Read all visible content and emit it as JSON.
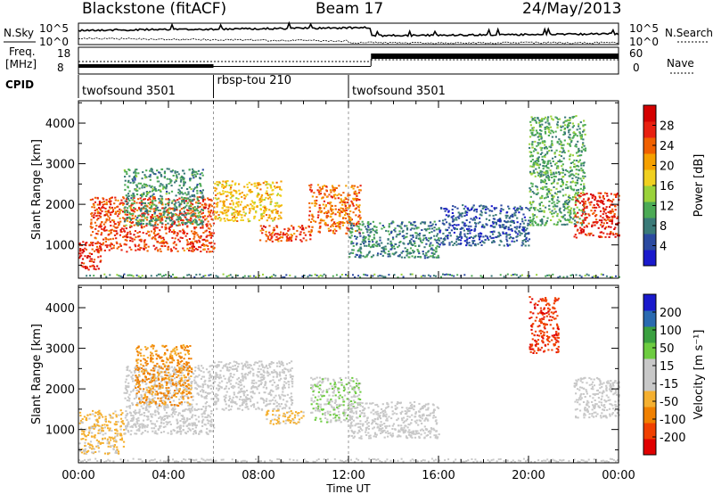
{
  "header": {
    "station": "Blackstone (fitACF)",
    "beam": "Beam 17",
    "date": "24/May/2013"
  },
  "side_labels": {
    "n_sky": "N.Sky",
    "n_search": "N.Search",
    "freq_line1": "Freq.",
    "freq_line2": "[MHz]",
    "nave": "Nave",
    "cpid": "CPID"
  },
  "noise_axis": {
    "top": "10^5",
    "bottom": "10^0"
  },
  "freq_axis": {
    "ticks": [
      "18",
      "8"
    ]
  },
  "nave_axis": {
    "ticks": [
      "60",
      "0"
    ]
  },
  "cpid_blocks": [
    {
      "label": "twofsound 3501",
      "start_hour": 0,
      "end_hour": 6
    },
    {
      "label": "rbsp-tou 210",
      "start_hour": 6,
      "end_hour": 12
    },
    {
      "label": "twofsound 3501",
      "start_hour": 12,
      "end_hour": 24
    }
  ],
  "chart_data": [
    {
      "type": "heatmap",
      "parameter": "power",
      "ylabel": "Slant Range [km]",
      "xlabel": "",
      "x_ticks": [
        "00:00",
        "04:00",
        "08:00",
        "12:00",
        "16:00",
        "20:00",
        "00:00"
      ],
      "y_ticks": [
        1000,
        2000,
        3000,
        4000
      ],
      "ylim": [
        180,
        4550
      ],
      "xlim_hours": [
        0,
        24
      ],
      "colorbar": {
        "label": "Power [dB]",
        "ticks": [
          "28",
          "24",
          "20",
          "16",
          "12",
          "8",
          "4"
        ],
        "range": [
          0,
          30
        ],
        "colors": [
          "#1a1acc",
          "#2b4aa0",
          "#3a7a78",
          "#4caa55",
          "#9ad23a",
          "#f0d020",
          "#f5a000",
          "#f06000",
          "#e82010",
          "#d40000"
        ]
      },
      "echo_regions": [
        {
          "start": 0.0,
          "end": 1.0,
          "range_low": 400,
          "range_high": 1100,
          "power": 26
        },
        {
          "start": 0.5,
          "end": 6.0,
          "range_low": 850,
          "range_high": 2200,
          "power": 24
        },
        {
          "start": 2.0,
          "end": 5.5,
          "range_low": 1500,
          "range_high": 2900,
          "power": 9
        },
        {
          "start": 6.0,
          "end": 9.0,
          "range_low": 1600,
          "range_high": 2600,
          "power": 18
        },
        {
          "start": 8.0,
          "end": 10.3,
          "range_low": 1100,
          "range_high": 1500,
          "power": 24
        },
        {
          "start": 10.2,
          "end": 12.5,
          "range_low": 1300,
          "range_high": 2500,
          "power": 22
        },
        {
          "start": 12.0,
          "end": 16.0,
          "range_low": 700,
          "range_high": 1600,
          "power": 8
        },
        {
          "start": 16.0,
          "end": 20.0,
          "range_low": 1000,
          "range_high": 2000,
          "power": 5
        },
        {
          "start": 20.0,
          "end": 22.5,
          "range_low": 1500,
          "range_high": 4200,
          "power": 10
        },
        {
          "start": 22.0,
          "end": 24.0,
          "range_low": 1200,
          "range_high": 2300,
          "power": 26
        }
      ]
    },
    {
      "type": "heatmap",
      "parameter": "velocity",
      "ylabel": "Slant Range [km]",
      "xlabel": "Time UT",
      "x_ticks": [
        "00:00",
        "04:00",
        "08:00",
        "12:00",
        "16:00",
        "20:00",
        "00:00"
      ],
      "y_ticks": [
        1000,
        2000,
        3000,
        4000
      ],
      "ylim": [
        180,
        4550
      ],
      "xlim_hours": [
        0,
        24
      ],
      "colorbar": {
        "label": "Velocity [m s⁻¹]",
        "ticks": [
          "200",
          "100",
          "50",
          "15",
          "-15",
          "-50",
          "-100",
          "-200"
        ],
        "range": [
          -250,
          250
        ],
        "colors": [
          "#e00000",
          "#f04000",
          "#f08000",
          "#f5b030",
          "#c8c8c8",
          "#c8c8c8",
          "#6dcc40",
          "#3aa040",
          "#2a6ab0",
          "#1a1acc"
        ]
      },
      "echo_regions": [
        {
          "start": 0.0,
          "end": 2.0,
          "range_low": 400,
          "range_high": 1500,
          "velocity": -60
        },
        {
          "start": 2.0,
          "end": 6.0,
          "range_low": 900,
          "range_high": 2600,
          "velocity": -20
        },
        {
          "start": 2.5,
          "end": 5.0,
          "range_low": 1600,
          "range_high": 3100,
          "velocity": -110
        },
        {
          "start": 6.0,
          "end": 9.5,
          "range_low": 1500,
          "range_high": 2700,
          "velocity": 0
        },
        {
          "start": 8.3,
          "end": 10.0,
          "range_low": 1150,
          "range_high": 1500,
          "velocity": -70
        },
        {
          "start": 10.3,
          "end": 12.5,
          "range_low": 1200,
          "range_high": 2300,
          "velocity": 45
        },
        {
          "start": 12.0,
          "end": 16.0,
          "range_low": 800,
          "range_high": 1700,
          "velocity": 5
        },
        {
          "start": 20.0,
          "end": 21.3,
          "range_low": 2900,
          "range_high": 4300,
          "velocity": -190
        },
        {
          "start": 22.0,
          "end": 24.0,
          "range_low": 1300,
          "range_high": 2300,
          "velocity": 5
        }
      ]
    }
  ]
}
